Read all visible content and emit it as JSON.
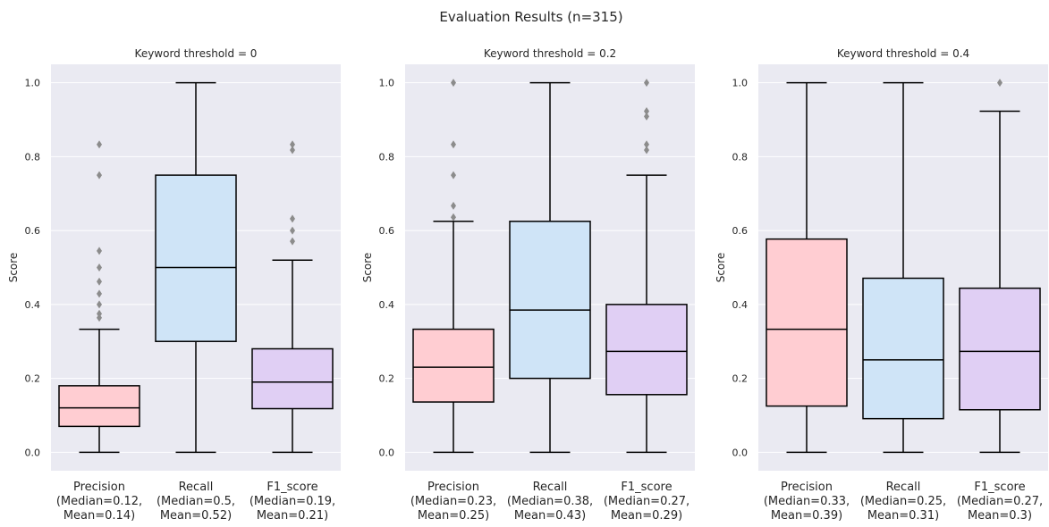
{
  "suptitle": "Evaluation Results (n=315)",
  "colors": {
    "background": "#eaeaf2",
    "grid": "#ffffff",
    "Precision": "#ffcdd2",
    "Recall": "#cfe4f7",
    "F1_score": "#e0cff4",
    "outlier": "#8c8c8c",
    "line": "#000000"
  },
  "chart_data": [
    {
      "type": "box",
      "title": "Keyword threshold = 0",
      "ylabel": "Score",
      "ylim": [
        -0.05,
        1.05
      ],
      "yticks": [
        "0.0",
        "0.2",
        "0.4",
        "0.6",
        "0.8",
        "1.0"
      ],
      "grid": true,
      "categories": [
        "Precision",
        "Recall",
        "F1_score"
      ],
      "tick_labels": [
        [
          "Precision",
          "(Median=0.12,",
          "Mean=0.14)"
        ],
        [
          "Recall",
          "(Median=0.5,",
          "Mean=0.52)"
        ],
        [
          "F1_score",
          "(Median=0.19,",
          "Mean=0.21)"
        ]
      ],
      "boxes": [
        {
          "name": "Precision",
          "whislo": 0,
          "q1": 0.07,
          "med": 0.12,
          "q3": 0.18,
          "whishi": 0.333,
          "fliers": [
            0.364,
            0.375,
            0.4,
            0.429,
            0.462,
            0.5,
            0.545,
            0.75,
            0.833
          ]
        },
        {
          "name": "Recall",
          "whislo": 0,
          "q1": 0.3,
          "med": 0.5,
          "q3": 0.75,
          "whishi": 1.0,
          "fliers": []
        },
        {
          "name": "F1_score",
          "whislo": 0,
          "q1": 0.118,
          "med": 0.19,
          "q3": 0.28,
          "whishi": 0.52,
          "fliers": [
            0.571,
            0.6,
            0.632,
            0.818,
            0.833
          ]
        }
      ]
    },
    {
      "type": "box",
      "title": "Keyword threshold = 0.2",
      "ylabel": "Score",
      "ylim": [
        -0.05,
        1.05
      ],
      "yticks": [
        "0.0",
        "0.2",
        "0.4",
        "0.6",
        "0.8",
        "1.0"
      ],
      "grid": true,
      "categories": [
        "Precision",
        "Recall",
        "F1_score"
      ],
      "tick_labels": [
        [
          "Precision",
          "(Median=0.23,",
          "Mean=0.25)"
        ],
        [
          "Recall",
          "(Median=0.38,",
          "Mean=0.43)"
        ],
        [
          "F1_score",
          "(Median=0.27,",
          "Mean=0.29)"
        ]
      ],
      "boxes": [
        {
          "name": "Precision",
          "whislo": 0,
          "q1": 0.136,
          "med": 0.23,
          "q3": 0.333,
          "whishi": 0.625,
          "fliers": [
            0.636,
            0.667,
            0.75,
            0.833,
            1.0
          ]
        },
        {
          "name": "Recall",
          "whislo": 0,
          "q1": 0.2,
          "med": 0.385,
          "q3": 0.625,
          "whishi": 1.0,
          "fliers": []
        },
        {
          "name": "F1_score",
          "whislo": 0,
          "q1": 0.156,
          "med": 0.273,
          "q3": 0.4,
          "whishi": 0.75,
          "fliers": [
            0.818,
            0.833,
            0.909,
            0.923,
            1.0
          ]
        }
      ]
    },
    {
      "type": "box",
      "title": "Keyword threshold = 0.4",
      "ylabel": "Score",
      "ylim": [
        -0.05,
        1.05
      ],
      "yticks": [
        "0.0",
        "0.2",
        "0.4",
        "0.6",
        "0.8",
        "1.0"
      ],
      "grid": true,
      "categories": [
        "Precision",
        "Recall",
        "F1_score"
      ],
      "tick_labels": [
        [
          "Precision",
          "(Median=0.33,",
          "Mean=0.39)"
        ],
        [
          "Recall",
          "(Median=0.25,",
          "Mean=0.31)"
        ],
        [
          "F1_score",
          "(Median=0.27,",
          "Mean=0.3)"
        ]
      ],
      "boxes": [
        {
          "name": "Precision",
          "whislo": 0,
          "q1": 0.125,
          "med": 0.333,
          "q3": 0.577,
          "whishi": 1.0,
          "fliers": []
        },
        {
          "name": "Recall",
          "whislo": 0,
          "q1": 0.091,
          "med": 0.25,
          "q3": 0.471,
          "whishi": 1.0,
          "fliers": []
        },
        {
          "name": "F1_score",
          "whislo": 0,
          "q1": 0.115,
          "med": 0.273,
          "q3": 0.444,
          "whishi": 0.923,
          "fliers": [
            1.0
          ]
        }
      ]
    }
  ]
}
